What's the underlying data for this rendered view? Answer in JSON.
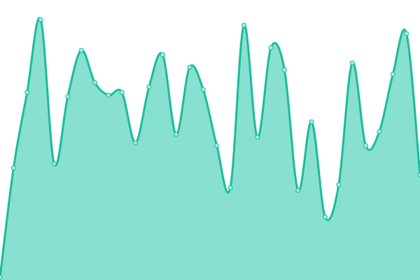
{
  "chart_data": {
    "type": "area",
    "title": "",
    "xlabel": "",
    "ylabel": "",
    "x": [
      0,
      1,
      2,
      3,
      4,
      5,
      6,
      7,
      8,
      9,
      10,
      11,
      12,
      13,
      14,
      15,
      16,
      17,
      18,
      19,
      20,
      21,
      22,
      23,
      24,
      25,
      26,
      27,
      28,
      29,
      30,
      31
    ],
    "series": [
      {
        "values": [
          1,
          40,
          67,
          93,
          41.5,
          65.5,
          82,
          70.5,
          66,
          67,
          49,
          69,
          80.5,
          52,
          76,
          68,
          48,
          33,
          91,
          51,
          83,
          75,
          32,
          56.5,
          22.5,
          34,
          77.5,
          48,
          53,
          73.5,
          88,
          37.5
        ]
      }
    ],
    "ylim": [
      0,
      100
    ],
    "xlim": [
      0,
      31
    ],
    "grid": false,
    "axes_visible": false,
    "smooth": true,
    "markers": true,
    "colors": {
      "line": "#1abc9c",
      "fill": "#88e0d0",
      "marker_fill": "#a8ece0"
    }
  }
}
